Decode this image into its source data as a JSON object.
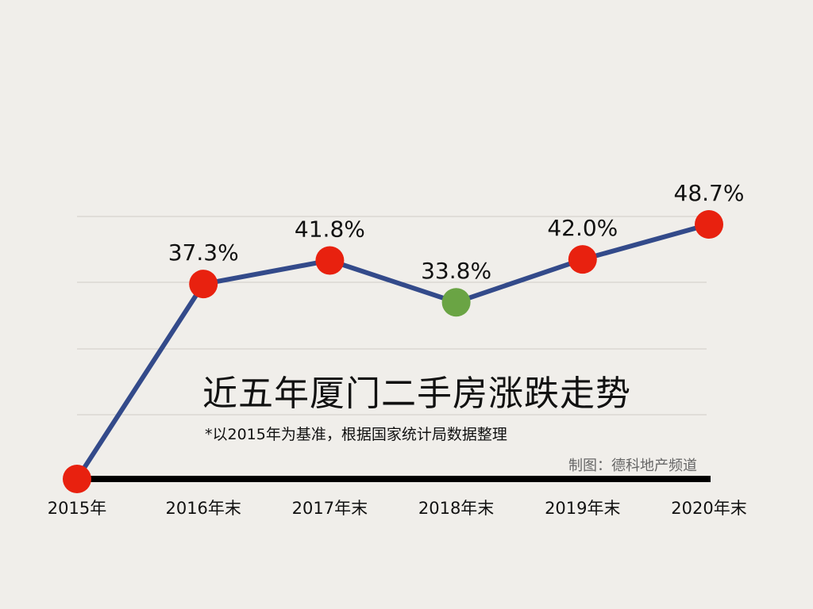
{
  "chart_data": {
    "type": "line",
    "title": "近五年厦门二手房涨跌走势",
    "subtitle": "*以2015年为基准，根据国家统计局数据整理",
    "credit": "制图：德科地产频道",
    "categories": [
      "2015年",
      "2016年末",
      "2017年末",
      "2018年末",
      "2019年末",
      "2020年末"
    ],
    "values": [
      0,
      37.3,
      41.8,
      33.8,
      42.0,
      48.7
    ],
    "data_labels": [
      "",
      "37.3%",
      "41.8%",
      "33.8%",
      "42.0%",
      "48.7%"
    ],
    "ylim": [
      0,
      48.7
    ],
    "grid": true,
    "colors": {
      "line": "#334a8a",
      "marker": "#e8210f",
      "marker_highlight": "#6aa444",
      "grid": "#cfccc6",
      "baseline": "#000000"
    },
    "highlight_index": 3
  }
}
